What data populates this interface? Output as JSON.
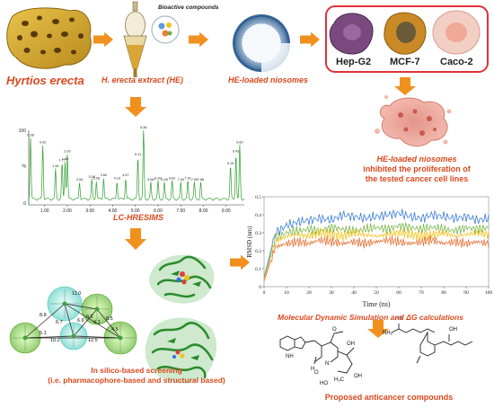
{
  "labels": {
    "sponge": "Hyrtios erecta",
    "extract": "H. erecta extract (HE)",
    "bioactive": "Bioactive compounds",
    "niosomes": "HE-loaded niosomes",
    "cell_hep": "Hep-G2",
    "cell_mcf": "MCF-7",
    "cell_caco": "Caco-2",
    "result_line1": "HE-loaded niosomes",
    "result_line2": "inhibited the proliferation of",
    "result_line3": "the tested cancer cell lines",
    "lc": "LC-HRESIMS",
    "md": "Molecular Dynamic Simulation and ΔG calculations",
    "insilico_line1": "In silico-based screening",
    "insilico_line2": "(i.e. pharmacophore-based and structural based)",
    "proposed": "Proposed anticancer compounds"
  },
  "colors": {
    "arrow": "#f0901e",
    "label": "#d9491e",
    "cell_box": "#e0323a"
  },
  "spectrum": {
    "y_ticks": [
      "100",
      "%",
      "0"
    ],
    "x_ticks": [
      "1.00",
      "2.00",
      "3.00",
      "4.00",
      "5.00",
      "6.00",
      "7.00",
      "8.00",
      "9.00"
    ],
    "peak_labels": [
      "0.38",
      "0.92",
      "1.48",
      "1.77",
      "1.90",
      "2.00",
      "2.54",
      "3.08",
      "3.28",
      "3.60",
      "4.19",
      "4.57",
      "5.11",
      "5.36",
      "5.68",
      "6.00",
      "6.28",
      "6.62",
      "7.00",
      "7.31",
      "7.60",
      "7.88",
      "9.19",
      "9.43",
      "9.60"
    ]
  },
  "chart_data": {
    "type": "line",
    "xlabel": "Time (ns)",
    "ylabel": "RMSD (nm)",
    "xlim": [
      0,
      100
    ],
    "ylim": [
      0,
      0.5
    ],
    "x_ticks": [
      0,
      10,
      20,
      30,
      40,
      50,
      60,
      70,
      80,
      90,
      100
    ],
    "y_ticks": [
      0,
      0.1,
      0.2,
      0.3,
      0.4,
      0.5
    ],
    "x": [
      0,
      5,
      10,
      15,
      20,
      25,
      30,
      35,
      40,
      45,
      50,
      55,
      60,
      65,
      70,
      75,
      80,
      85,
      90,
      95,
      100
    ],
    "series": [
      {
        "color": "#3b7dd8",
        "values": [
          0.05,
          0.3,
          0.34,
          0.36,
          0.37,
          0.38,
          0.37,
          0.4,
          0.39,
          0.38,
          0.39,
          0.4,
          0.41,
          0.39,
          0.38,
          0.4,
          0.39,
          0.38,
          0.39,
          0.37,
          0.38
        ]
      },
      {
        "color": "#7ab648",
        "values": [
          0.04,
          0.27,
          0.3,
          0.31,
          0.32,
          0.31,
          0.33,
          0.32,
          0.31,
          0.32,
          0.33,
          0.32,
          0.34,
          0.33,
          0.32,
          0.33,
          0.32,
          0.31,
          0.33,
          0.32,
          0.33
        ]
      },
      {
        "color": "#f4c21b",
        "values": [
          0.04,
          0.25,
          0.28,
          0.29,
          0.28,
          0.3,
          0.29,
          0.28,
          0.3,
          0.29,
          0.28,
          0.29,
          0.3,
          0.29,
          0.28,
          0.29,
          0.3,
          0.28,
          0.29,
          0.3,
          0.29
        ]
      },
      {
        "color": "#e8743b",
        "values": [
          0.03,
          0.22,
          0.24,
          0.25,
          0.24,
          0.26,
          0.25,
          0.24,
          0.25,
          0.24,
          0.25,
          0.26,
          0.25,
          0.24,
          0.25,
          0.26,
          0.24,
          0.25,
          0.24,
          0.25,
          0.24
        ]
      }
    ]
  },
  "pharmacophore_labels": [
    "8.8",
    "11.0",
    "8.2",
    "4.1",
    "8.5",
    "6.7",
    "6.6",
    "4.5",
    "10.2",
    "5.1",
    "12.5"
  ],
  "molecule_labels": [
    "OH",
    "OH",
    "NH",
    "N",
    "H",
    "O",
    "O",
    "HO",
    "H₃C",
    "NH₂",
    "HN",
    "OH"
  ]
}
